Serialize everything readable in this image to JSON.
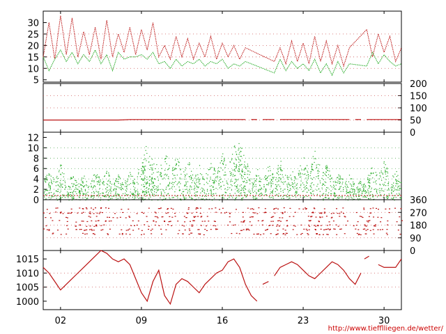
{
  "credit": "http://www.tiefflliegen.de/wetter/",
  "colors": {
    "red": "#bb1111",
    "green": "#22aa22",
    "grid_red": "#cc5555",
    "grid_green": "#55aa55",
    "axis": "#000000"
  },
  "chart_data": [
    {
      "type": "line",
      "name": "temperature-panel",
      "ylim": [
        4,
        35
      ],
      "yticks": [
        "5",
        "10",
        "15",
        "20",
        "25",
        "30"
      ],
      "x_range": [
        0.5,
        31.5
      ],
      "series": [
        {
          "color": "red",
          "x": [
            0.5,
            1,
            1.5,
            2,
            2.5,
            3,
            3.5,
            4,
            4.5,
            5,
            5.5,
            6,
            6.5,
            7,
            7.5,
            8,
            8.5,
            9,
            9.5,
            10,
            10.5,
            11,
            11.5,
            12,
            12.5,
            13,
            13.5,
            14,
            14.5,
            15,
            15.5,
            16,
            16.5,
            17,
            17.5,
            18,
            20.5,
            21,
            21.5,
            22,
            22.5,
            23,
            23.5,
            24,
            24.5,
            25,
            25.5,
            26,
            26.5,
            27,
            28.5,
            29,
            29.5,
            30,
            30.5,
            31,
            31.5
          ],
          "y": [
            15,
            30,
            14,
            33,
            16,
            32,
            15,
            26,
            16,
            28,
            14,
            31,
            15,
            25,
            17,
            28,
            16,
            27,
            18,
            30,
            15,
            20,
            14,
            24,
            15,
            23,
            14,
            21,
            15,
            24,
            14,
            21,
            15,
            20,
            14,
            19,
            13,
            19,
            12,
            22,
            13,
            21,
            12,
            24,
            13,
            22,
            12,
            20,
            11,
            19,
            27,
            15,
            25,
            17,
            24,
            13,
            19
          ]
        },
        {
          "color": "green",
          "x": [
            0.5,
            1,
            1.5,
            2,
            2.5,
            3,
            3.5,
            4,
            4.5,
            5,
            5.5,
            6,
            6.5,
            7,
            7.5,
            8,
            8.5,
            9,
            9.5,
            10,
            10.5,
            11,
            11.5,
            12,
            12.5,
            13,
            13.5,
            14,
            14.5,
            15,
            15.5,
            16,
            16.5,
            17,
            17.5,
            18,
            20.5,
            21,
            21.5,
            22,
            22.5,
            23,
            23.5,
            24,
            24.5,
            25,
            25.5,
            26,
            26.5,
            27,
            28.5,
            29,
            29.5,
            30,
            30.5,
            31,
            31.5
          ],
          "y": [
            15,
            9,
            14,
            18,
            13,
            17,
            12,
            16,
            13,
            18,
            12,
            16,
            9,
            17,
            14,
            15,
            15,
            16,
            14,
            17,
            12,
            13,
            10,
            14,
            11,
            13,
            12,
            14,
            11,
            13,
            12,
            14,
            10,
            12,
            11,
            13,
            8,
            14,
            9,
            13,
            10,
            12,
            9,
            14,
            8,
            12,
            7,
            13,
            8,
            12,
            11,
            17,
            12,
            16,
            13,
            11,
            12
          ]
        }
      ]
    },
    {
      "type": "line",
      "name": "small-series-panel",
      "ylim": [
        0,
        200
      ],
      "yticks": [
        "0",
        "50",
        "100",
        "150",
        "200"
      ],
      "x_range": [
        0.5,
        31.5
      ],
      "series": [
        {
          "color": "red",
          "segments": [
            [
              [
                0.5,
                50
              ],
              [
                7,
                50
              ],
              [
                8,
                52
              ],
              [
                18,
                52
              ]
            ],
            [
              [
                18.5,
                52
              ],
              [
                19,
                52
              ]
            ],
            [
              [
                19.5,
                52
              ],
              [
                20.5,
                52
              ]
            ],
            [
              [
                21,
                52
              ],
              [
                27,
                52
              ]
            ],
            [
              [
                27.5,
                52
              ],
              [
                28,
                52
              ]
            ],
            [
              [
                28.5,
                52
              ],
              [
                31.5,
                52
              ]
            ]
          ]
        }
      ]
    },
    {
      "type": "scatter",
      "name": "wind-speed-panel",
      "ylim": [
        0,
        13
      ],
      "yticks": [
        "0",
        "2",
        "4",
        "6",
        "8",
        "10",
        "12"
      ],
      "x_range": [
        0.5,
        31.5
      ],
      "series": [
        {
          "color": "green",
          "peaks": [
            [
              1,
              6
            ],
            [
              2,
              7
            ],
            [
              3,
              5
            ],
            [
              4,
              5
            ],
            [
              5,
              6
            ],
            [
              6,
              6
            ],
            [
              7,
              5
            ],
            [
              8,
              6
            ],
            [
              9,
              8
            ],
            [
              9.5,
              12
            ],
            [
              10,
              9
            ],
            [
              11,
              10
            ],
            [
              12,
              9
            ],
            [
              13,
              8
            ],
            [
              14,
              7
            ],
            [
              15,
              8
            ],
            [
              16,
              9
            ],
            [
              17,
              11
            ],
            [
              17.5,
              12
            ],
            [
              18,
              8
            ],
            [
              19,
              6
            ],
            [
              20,
              7
            ],
            [
              21,
              8
            ],
            [
              22,
              7
            ],
            [
              23,
              9
            ],
            [
              24,
              10
            ],
            [
              25,
              7
            ],
            [
              26,
              6
            ],
            [
              27,
              5
            ],
            [
              28,
              4
            ],
            [
              29,
              7
            ],
            [
              30,
              8
            ],
            [
              31,
              6
            ]
          ]
        },
        {
          "color": "red",
          "level": 0.8
        }
      ]
    },
    {
      "type": "scatter",
      "name": "wind-direction-panel",
      "ylim": [
        0,
        360
      ],
      "yticks": [
        "0",
        "90",
        "180",
        "270",
        "360"
      ],
      "x_range": [
        0.5,
        31.5
      ],
      "series": [
        {
          "color": "red",
          "bands": [
            180,
            210,
            240,
            270,
            300,
            150,
            120
          ]
        }
      ]
    },
    {
      "type": "line",
      "name": "pressure-panel",
      "ylim": [
        997,
        1018
      ],
      "yticks": [
        "1000",
        "1005",
        "1010",
        "1015"
      ],
      "x_range": [
        0.5,
        31.5
      ],
      "xticks": [
        {
          "label": "02",
          "x": 2
        },
        {
          "label": "09",
          "x": 9
        },
        {
          "label": "16",
          "x": 16
        },
        {
          "label": "23",
          "x": 23
        },
        {
          "label": "30",
          "x": 30
        }
      ],
      "series": [
        {
          "color": "red",
          "segments": [
            [
              [
                0.5,
                1012
              ],
              [
                1,
                1010
              ],
              [
                1.5,
                1007
              ],
              [
                2,
                1004
              ],
              [
                2.5,
                1006
              ],
              [
                3,
                1008
              ],
              [
                3.5,
                1010
              ],
              [
                4,
                1012
              ],
              [
                4.5,
                1014
              ],
              [
                5,
                1016
              ],
              [
                5.5,
                1018
              ],
              [
                6,
                1017
              ],
              [
                6.5,
                1015
              ],
              [
                7,
                1014
              ],
              [
                7.5,
                1015
              ],
              [
                8,
                1013
              ],
              [
                8.5,
                1008
              ],
              [
                9,
                1003
              ],
              [
                9.5,
                1000
              ],
              [
                10,
                1007
              ],
              [
                10.5,
                1011
              ],
              [
                11,
                1002
              ],
              [
                11.5,
                999
              ],
              [
                12,
                1006
              ],
              [
                12.5,
                1008
              ],
              [
                13,
                1007
              ],
              [
                13.5,
                1005
              ],
              [
                14,
                1003
              ],
              [
                14.5,
                1006
              ],
              [
                15,
                1008
              ],
              [
                15.5,
                1010
              ],
              [
                16,
                1011
              ],
              [
                16.5,
                1014
              ],
              [
                17,
                1015
              ],
              [
                17.5,
                1012
              ],
              [
                18,
                1006
              ],
              [
                18.5,
                1002
              ],
              [
                19,
                1000
              ]
            ],
            [
              [
                19.5,
                1006
              ],
              [
                20,
                1007
              ]
            ],
            [
              [
                20.5,
                1009
              ],
              [
                21,
                1012
              ],
              [
                21.5,
                1013
              ],
              [
                22,
                1014
              ],
              [
                22.5,
                1013
              ],
              [
                23,
                1011
              ],
              [
                23.5,
                1009
              ],
              [
                24,
                1008
              ],
              [
                24.5,
                1010
              ],
              [
                25,
                1012
              ],
              [
                25.5,
                1014
              ],
              [
                26,
                1013
              ],
              [
                26.5,
                1011
              ],
              [
                27,
                1008
              ],
              [
                27.5,
                1006
              ],
              [
                28,
                1010
              ]
            ],
            [
              [
                28.3,
                1015
              ],
              [
                28.7,
                1016
              ]
            ],
            [
              [
                29.5,
                1013
              ],
              [
                30,
                1012
              ],
              [
                30.5,
                1012
              ],
              [
                31,
                1012
              ],
              [
                31.5,
                1015
              ]
            ]
          ]
        }
      ]
    }
  ]
}
